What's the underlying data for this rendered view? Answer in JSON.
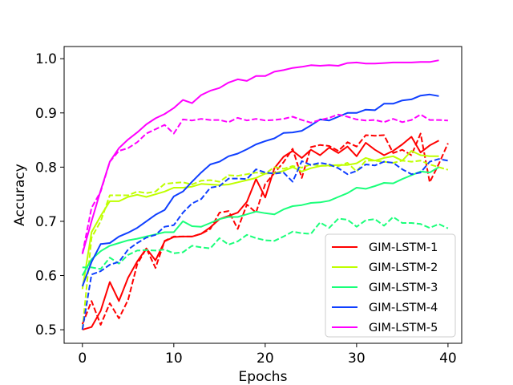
{
  "chart_data": {
    "type": "line",
    "xlabel": "Epochs",
    "ylabel": "Accuracy",
    "xlim": [
      -2,
      41.5
    ],
    "ylim": [
      0.475,
      1.0225
    ],
    "xticks": [
      0,
      10,
      20,
      30,
      40
    ],
    "yticks": [
      0.5,
      0.6,
      0.7,
      0.8,
      0.9,
      1.0
    ],
    "xtick_labels": [
      "0",
      "10",
      "20",
      "30",
      "40"
    ],
    "ytick_labels": [
      "0.5",
      "0.6",
      "0.7",
      "0.8",
      "0.9",
      "1.0"
    ],
    "grid": false,
    "legend_position": "lower-right",
    "series": [
      {
        "name": "GIM-LSTM-1",
        "color": "#ff0000",
        "style": "solid",
        "x": [
          0,
          1,
          2,
          3,
          4,
          5,
          6,
          7,
          8,
          9,
          10,
          11,
          12,
          13,
          14,
          15,
          16,
          17,
          18,
          19,
          20,
          21,
          22,
          23,
          24,
          25,
          26,
          27,
          28,
          29,
          30,
          31,
          32,
          33,
          34,
          35,
          36,
          37,
          38,
          39
        ],
        "values": [
          0.5,
          0.505,
          0.535,
          0.588,
          0.553,
          0.596,
          0.626,
          0.65,
          0.628,
          0.663,
          0.671,
          0.672,
          0.672,
          0.677,
          0.689,
          0.704,
          0.71,
          0.716,
          0.736,
          0.778,
          0.744,
          0.798,
          0.819,
          0.83,
          0.817,
          0.832,
          0.822,
          0.836,
          0.826,
          0.838,
          0.82,
          0.845,
          0.832,
          0.822,
          0.83,
          0.842,
          0.856,
          0.827,
          0.84,
          0.849
        ]
      },
      {
        "name": "GIM-LSTM-1 (dashed)",
        "color": "#ff0000",
        "style": "dashed",
        "x": [
          0,
          1,
          2,
          3,
          4,
          5,
          6,
          7,
          8,
          9,
          10,
          11,
          12,
          13,
          14,
          15,
          16,
          17,
          18,
          19,
          20,
          21,
          22,
          23,
          24,
          25,
          26,
          27,
          28,
          29,
          30,
          31,
          32,
          33,
          34,
          35,
          36,
          37,
          38,
          39,
          40
        ],
        "values": [
          0.51,
          0.553,
          0.509,
          0.549,
          0.521,
          0.555,
          0.621,
          0.65,
          0.614,
          0.664,
          0.672,
          0.672,
          0.672,
          0.677,
          0.686,
          0.716,
          0.719,
          0.686,
          0.731,
          0.716,
          0.769,
          0.789,
          0.809,
          0.834,
          0.78,
          0.837,
          0.841,
          0.839,
          0.83,
          0.846,
          0.838,
          0.859,
          0.858,
          0.859,
          0.826,
          0.832,
          0.822,
          0.862,
          0.772,
          0.806,
          0.844
        ]
      },
      {
        "name": "GIM-LSTM-2",
        "color": "#bfff00",
        "style": "solid",
        "x": [
          0,
          1,
          2,
          3,
          4,
          5,
          6,
          7,
          8,
          9,
          10,
          11,
          12,
          13,
          14,
          15,
          16,
          17,
          18,
          19,
          20,
          21,
          22,
          23,
          24,
          25,
          26,
          27,
          28,
          29,
          30,
          31,
          32,
          33,
          34,
          35,
          36,
          37,
          38,
          39
        ],
        "values": [
          0.575,
          0.68,
          0.71,
          0.737,
          0.737,
          0.745,
          0.749,
          0.745,
          0.75,
          0.755,
          0.762,
          0.762,
          0.764,
          0.769,
          0.768,
          0.767,
          0.768,
          0.772,
          0.776,
          0.78,
          0.788,
          0.789,
          0.793,
          0.8,
          0.792,
          0.798,
          0.802,
          0.803,
          0.804,
          0.804,
          0.807,
          0.817,
          0.812,
          0.817,
          0.82,
          0.812,
          0.83,
          0.822,
          0.82,
          0.82
        ]
      },
      {
        "name": "GIM-LSTM-2 (dashed)",
        "color": "#bfff00",
        "style": "dashed",
        "x": [
          0,
          1,
          2,
          3,
          4,
          5,
          6,
          7,
          8,
          9,
          10,
          11,
          12,
          13,
          14,
          15,
          16,
          17,
          18,
          19,
          20,
          21,
          22,
          23,
          24,
          25,
          26,
          27,
          28,
          29,
          30,
          31,
          32,
          33,
          34,
          35,
          36,
          37,
          38,
          39,
          40
        ],
        "values": [
          0.5,
          0.67,
          0.7,
          0.748,
          0.748,
          0.748,
          0.755,
          0.752,
          0.755,
          0.769,
          0.771,
          0.772,
          0.768,
          0.775,
          0.776,
          0.773,
          0.785,
          0.784,
          0.787,
          0.79,
          0.788,
          0.8,
          0.797,
          0.802,
          0.799,
          0.805,
          0.803,
          0.802,
          0.802,
          0.808,
          0.792,
          0.812,
          0.812,
          0.81,
          0.808,
          0.812,
          0.81,
          0.812,
          0.805,
          0.8,
          0.795
        ]
      },
      {
        "name": "GIM-LSTM-3",
        "color": "#1aff7a",
        "style": "solid",
        "x": [
          0,
          1,
          2,
          3,
          4,
          5,
          6,
          7,
          8,
          9,
          10,
          11,
          12,
          13,
          14,
          15,
          16,
          17,
          18,
          19,
          20,
          21,
          22,
          23,
          24,
          25,
          26,
          27,
          28,
          29,
          30,
          31,
          32,
          33,
          34,
          35,
          36,
          37,
          38,
          39
        ],
        "values": [
          0.6,
          0.63,
          0.645,
          0.655,
          0.66,
          0.665,
          0.668,
          0.672,
          0.676,
          0.68,
          0.68,
          0.7,
          0.691,
          0.69,
          0.697,
          0.704,
          0.708,
          0.708,
          0.713,
          0.718,
          0.715,
          0.713,
          0.722,
          0.728,
          0.73,
          0.734,
          0.735,
          0.738,
          0.745,
          0.752,
          0.762,
          0.76,
          0.765,
          0.771,
          0.77,
          0.778,
          0.785,
          0.792,
          0.79,
          0.8
        ]
      },
      {
        "name": "GIM-LSTM-3 (dashed)",
        "color": "#1aff7a",
        "style": "dashed",
        "x": [
          0,
          1,
          2,
          3,
          4,
          5,
          6,
          7,
          8,
          9,
          10,
          11,
          12,
          13,
          14,
          15,
          16,
          17,
          18,
          19,
          20,
          21,
          22,
          23,
          24,
          25,
          26,
          27,
          28,
          29,
          30,
          31,
          32,
          33,
          34,
          35,
          36,
          37,
          38,
          39,
          40
        ],
        "values": [
          0.615,
          0.615,
          0.612,
          0.633,
          0.622,
          0.638,
          0.646,
          0.647,
          0.646,
          0.648,
          0.641,
          0.643,
          0.655,
          0.652,
          0.65,
          0.669,
          0.657,
          0.663,
          0.675,
          0.669,
          0.665,
          0.664,
          0.672,
          0.681,
          0.678,
          0.677,
          0.698,
          0.688,
          0.705,
          0.703,
          0.69,
          0.702,
          0.704,
          0.692,
          0.708,
          0.697,
          0.697,
          0.695,
          0.688,
          0.695,
          0.687
        ]
      },
      {
        "name": "GIM-LSTM-4",
        "color": "#0f3fff",
        "style": "solid",
        "x": [
          0,
          1,
          2,
          3,
          4,
          5,
          6,
          7,
          8,
          9,
          10,
          11,
          12,
          13,
          14,
          15,
          16,
          17,
          18,
          19,
          20,
          21,
          22,
          23,
          24,
          25,
          26,
          27,
          28,
          29,
          30,
          31,
          32,
          33,
          34,
          35,
          36,
          37,
          38,
          39
        ],
        "values": [
          0.58,
          0.625,
          0.658,
          0.66,
          0.672,
          0.679,
          0.688,
          0.7,
          0.712,
          0.721,
          0.746,
          0.755,
          0.773,
          0.79,
          0.805,
          0.81,
          0.82,
          0.825,
          0.833,
          0.842,
          0.848,
          0.853,
          0.863,
          0.864,
          0.867,
          0.877,
          0.888,
          0.886,
          0.893,
          0.9,
          0.9,
          0.906,
          0.905,
          0.917,
          0.917,
          0.923,
          0.925,
          0.932,
          0.934,
          0.931
        ]
      },
      {
        "name": "GIM-LSTM-4 (dashed)",
        "color": "#0f3fff",
        "style": "dashed",
        "x": [
          0,
          1,
          2,
          3,
          4,
          5,
          6,
          7,
          8,
          9,
          10,
          11,
          12,
          13,
          14,
          15,
          16,
          17,
          18,
          19,
          20,
          21,
          22,
          23,
          24,
          25,
          26,
          27,
          28,
          29,
          30,
          31,
          32,
          33,
          34,
          35,
          36,
          37,
          38,
          39,
          40
        ],
        "values": [
          0.5,
          0.602,
          0.608,
          0.62,
          0.625,
          0.648,
          0.66,
          0.67,
          0.675,
          0.69,
          0.693,
          0.716,
          0.733,
          0.741,
          0.762,
          0.765,
          0.779,
          0.779,
          0.778,
          0.796,
          0.79,
          0.788,
          0.79,
          0.773,
          0.811,
          0.804,
          0.808,
          0.805,
          0.798,
          0.787,
          0.793,
          0.805,
          0.803,
          0.81,
          0.808,
          0.796,
          0.787,
          0.79,
          0.81,
          0.815,
          0.812
        ]
      },
      {
        "name": "GIM-LSTM-5",
        "color": "#ff00ff",
        "style": "solid",
        "x": [
          0,
          1,
          2,
          3,
          4,
          5,
          6,
          7,
          8,
          9,
          10,
          11,
          12,
          13,
          14,
          15,
          16,
          17,
          18,
          19,
          20,
          21,
          22,
          23,
          24,
          25,
          26,
          27,
          28,
          29,
          30,
          31,
          32,
          33,
          34,
          35,
          36,
          37,
          38,
          39
        ],
        "values": [
          0.64,
          0.7,
          0.757,
          0.81,
          0.835,
          0.851,
          0.864,
          0.879,
          0.89,
          0.898,
          0.909,
          0.924,
          0.918,
          0.933,
          0.941,
          0.946,
          0.956,
          0.962,
          0.959,
          0.968,
          0.968,
          0.976,
          0.979,
          0.983,
          0.985,
          0.988,
          0.987,
          0.988,
          0.987,
          0.992,
          0.993,
          0.991,
          0.991,
          0.992,
          0.993,
          0.993,
          0.993,
          0.994,
          0.994,
          0.997
        ]
      },
      {
        "name": "GIM-LSTM-5 (dashed)",
        "color": "#ff00ff",
        "style": "dashed",
        "x": [
          0,
          1,
          2,
          3,
          4,
          5,
          6,
          7,
          8,
          9,
          10,
          11,
          12,
          13,
          14,
          15,
          16,
          17,
          18,
          19,
          20,
          21,
          22,
          23,
          24,
          25,
          26,
          27,
          28,
          29,
          30,
          31,
          32,
          33,
          34,
          35,
          36,
          37,
          38,
          39,
          40
        ],
        "values": [
          0.64,
          0.725,
          0.755,
          0.81,
          0.83,
          0.835,
          0.846,
          0.862,
          0.87,
          0.878,
          0.862,
          0.888,
          0.886,
          0.889,
          0.887,
          0.887,
          0.883,
          0.891,
          0.886,
          0.889,
          0.886,
          0.887,
          0.889,
          0.893,
          0.887,
          0.882,
          0.887,
          0.891,
          0.897,
          0.893,
          0.888,
          0.886,
          0.887,
          0.883,
          0.889,
          0.883,
          0.887,
          0.897,
          0.887,
          0.887,
          0.886
        ]
      }
    ],
    "legend": [
      {
        "label": "GIM-LSTM-1",
        "color": "#ff0000"
      },
      {
        "label": "GIM-LSTM-2",
        "color": "#bfff00"
      },
      {
        "label": "GIM-LSTM-3",
        "color": "#1aff7a"
      },
      {
        "label": "GIM-LSTM-4",
        "color": "#0f3fff"
      },
      {
        "label": "GIM-LSTM-5",
        "color": "#ff00ff"
      }
    ]
  }
}
